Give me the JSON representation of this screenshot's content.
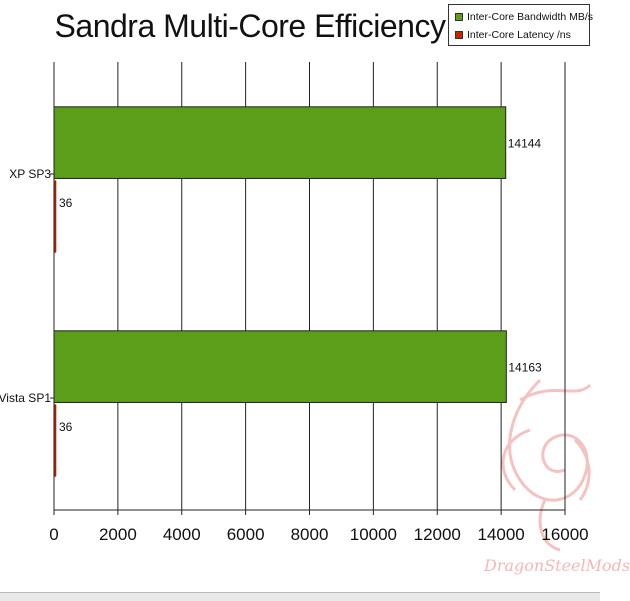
{
  "chart_data": {
    "type": "bar",
    "orientation": "horizontal",
    "title": "Sandra Multi-Core Efficiency",
    "categories": [
      "XP SP3",
      "Vista SP1"
    ],
    "series": [
      {
        "name": "Inter-Core Bandwidth MB/s",
        "values": [
          14144,
          14163
        ],
        "color": "#5a9e1a"
      },
      {
        "name": "Inter-Core Latency /ns",
        "values": [
          36,
          36
        ],
        "color": "#cc2200"
      }
    ],
    "xlim": [
      0,
      16000
    ],
    "xticks": [
      0,
      2000,
      4000,
      6000,
      8000,
      10000,
      12000,
      14000,
      16000
    ],
    "grid": true,
    "legend_position": "top-right"
  },
  "watermark": "DragonSteelMods"
}
